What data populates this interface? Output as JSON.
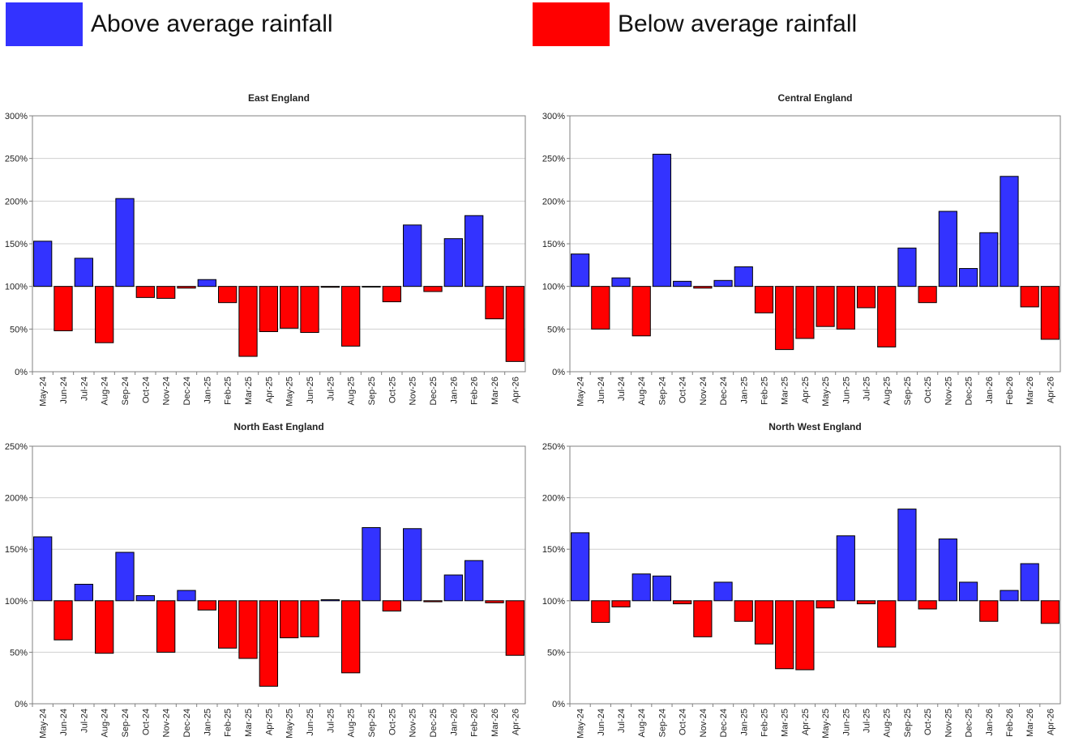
{
  "legend": {
    "above": {
      "label": "Above average rainfall",
      "color": "#3333ff"
    },
    "below": {
      "label": "Below average rainfall",
      "color": "#ff0000"
    }
  },
  "colors": {
    "above": "#3333ff",
    "below": "#ff0000",
    "grid": "#d0d0d0",
    "axis": "#808080"
  },
  "chart_data": [
    {
      "type": "bar",
      "title": "East England",
      "baseline": 100,
      "ylim": [
        0,
        300
      ],
      "yticks": [
        "0%",
        "50%",
        "100%",
        "150%",
        "200%",
        "250%",
        "300%"
      ],
      "categories": [
        "May-24",
        "Jun-24",
        "Jul-24",
        "Aug-24",
        "Sep-24",
        "Oct-24",
        "Nov-24",
        "Dec-24",
        "Jan-25",
        "Feb-25",
        "Mar-25",
        "Apr-25",
        "May-25",
        "Jun-25",
        "Jul-25",
        "Aug-25",
        "Sep-25",
        "Oct-25",
        "Nov-25",
        "Dec-25",
        "Jan-26",
        "Feb-26",
        "Mar-26",
        "Apr-26"
      ],
      "values": [
        153,
        48,
        133,
        34,
        203,
        87,
        86,
        98,
        108,
        81,
        18,
        47,
        51,
        46,
        99,
        30,
        100,
        82,
        172,
        94,
        156,
        183,
        62,
        12
      ]
    },
    {
      "type": "bar",
      "title": "Central England",
      "baseline": 100,
      "ylim": [
        0,
        300
      ],
      "yticks": [
        "0%",
        "50%",
        "100%",
        "150%",
        "200%",
        "250%",
        "300%"
      ],
      "categories": [
        "May-24",
        "Jun-24",
        "Jul-24",
        "Aug-24",
        "Sep-24",
        "Oct-24",
        "Nov-24",
        "Dec-24",
        "Jan-25",
        "Feb-25",
        "Mar-25",
        "Apr-25",
        "May-25",
        "Jun-25",
        "Jul-25",
        "Aug-25",
        "Sep-25",
        "Oct-25",
        "Nov-25",
        "Dec-25",
        "Jan-26",
        "Feb-26",
        "Mar-26",
        "Apr-26"
      ],
      "values": [
        138,
        50,
        110,
        42,
        255,
        106,
        98,
        107,
        123,
        69,
        26,
        39,
        53,
        50,
        75,
        29,
        145,
        81,
        188,
        121,
        163,
        229,
        76,
        38
      ]
    },
    {
      "type": "bar",
      "title": "North East England",
      "baseline": 100,
      "ylim": [
        0,
        250
      ],
      "yticks": [
        "0%",
        "50%",
        "100%",
        "150%",
        "200%",
        "250%"
      ],
      "categories": [
        "May-24",
        "Jun-24",
        "Jul-24",
        "Aug-24",
        "Sep-24",
        "Oct-24",
        "Nov-24",
        "Dec-24",
        "Jan-25",
        "Feb-25",
        "Mar-25",
        "Apr-25",
        "May-25",
        "Jun-25",
        "Jul-25",
        "Aug-25",
        "Sep-25",
        "Oct-25",
        "Nov-25",
        "Dec-25",
        "Jan-26",
        "Feb-26",
        "Mar-26",
        "Apr-26"
      ],
      "values": [
        162,
        62,
        116,
        49,
        147,
        105,
        50,
        110,
        91,
        54,
        44,
        17,
        64,
        65,
        101,
        30,
        171,
        90,
        170,
        99,
        125,
        139,
        98,
        47
      ]
    },
    {
      "type": "bar",
      "title": "North West England",
      "baseline": 100,
      "ylim": [
        0,
        250
      ],
      "yticks": [
        "0%",
        "50%",
        "100%",
        "150%",
        "200%",
        "250%"
      ],
      "categories": [
        "May-24",
        "Jun-24",
        "Jul-24",
        "Aug-24",
        "Sep-24",
        "Oct-24",
        "Nov-24",
        "Dec-24",
        "Jan-25",
        "Feb-25",
        "Mar-25",
        "Apr-25",
        "May-25",
        "Jun-25",
        "Jul-25",
        "Aug-25",
        "Sep-25",
        "Oct-25",
        "Nov-25",
        "Dec-25",
        "Jan-26",
        "Feb-26",
        "Mar-26",
        "Apr-26"
      ],
      "values": [
        166,
        79,
        94,
        126,
        124,
        97,
        65,
        118,
        80,
        58,
        34,
        33,
        93,
        163,
        97,
        55,
        189,
        92,
        160,
        118,
        80,
        110,
        136,
        78
      ]
    }
  ]
}
